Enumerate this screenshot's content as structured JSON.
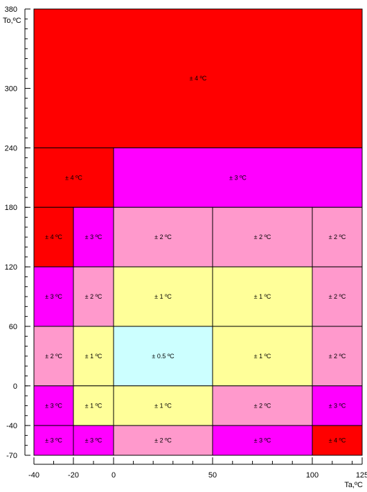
{
  "chart_data": {
    "type": "heatmap",
    "title": "",
    "xlabel": "Ta,ºC",
    "ylabel": "To,ºC",
    "xlim": [
      -40,
      125
    ],
    "ylim": [
      -70,
      380
    ],
    "x_ticks": [
      -40,
      -20,
      0,
      50,
      100,
      125
    ],
    "y_ticks": [
      -70,
      -40,
      0,
      60,
      120,
      180,
      240,
      300,
      380
    ],
    "x_minor_step": 10,
    "y_minor_step": 10,
    "grid": false,
    "colors": {
      "±4ºC": "#ff0000",
      "±3ºC": "#ff00ff",
      "±2ºC": "#ff99cc",
      "±1ºC": "#ffff99",
      "±0.5ºC": "#ccffff"
    },
    "cells": [
      {
        "x0": -40,
        "x1": 125,
        "y0": 240,
        "y1": 380,
        "label": "± 4 ºC",
        "color": "#ff0000"
      },
      {
        "x0": -40,
        "x1": 0,
        "y0": 180,
        "y1": 240,
        "label": "± 4 ºC",
        "color": "#ff0000"
      },
      {
        "x0": 0,
        "x1": 125,
        "y0": 180,
        "y1": 240,
        "label": "± 3 ºC",
        "color": "#ff00ff"
      },
      {
        "x0": -40,
        "x1": -20,
        "y0": 120,
        "y1": 180,
        "label": "± 4 ºC",
        "color": "#ff0000"
      },
      {
        "x0": -20,
        "x1": 0,
        "y0": 120,
        "y1": 180,
        "label": "± 3 ºC",
        "color": "#ff00ff"
      },
      {
        "x0": 0,
        "x1": 50,
        "y0": 120,
        "y1": 180,
        "label": "± 2 ºC",
        "color": "#ff99cc"
      },
      {
        "x0": 50,
        "x1": 100,
        "y0": 120,
        "y1": 180,
        "label": "± 2 ºC",
        "color": "#ff99cc"
      },
      {
        "x0": 100,
        "x1": 125,
        "y0": 120,
        "y1": 180,
        "label": "± 2 ºC",
        "color": "#ff99cc"
      },
      {
        "x0": -40,
        "x1": -20,
        "y0": 60,
        "y1": 120,
        "label": "± 3 ºC",
        "color": "#ff00ff"
      },
      {
        "x0": -20,
        "x1": 0,
        "y0": 60,
        "y1": 120,
        "label": "± 2 ºC",
        "color": "#ff99cc"
      },
      {
        "x0": 0,
        "x1": 50,
        "y0": 60,
        "y1": 120,
        "label": "± 1 ºC",
        "color": "#ffff99"
      },
      {
        "x0": 50,
        "x1": 100,
        "y0": 60,
        "y1": 120,
        "label": "± 1 ºC",
        "color": "#ffff99"
      },
      {
        "x0": 100,
        "x1": 125,
        "y0": 60,
        "y1": 120,
        "label": "± 2 ºC",
        "color": "#ff99cc"
      },
      {
        "x0": -40,
        "x1": -20,
        "y0": 0,
        "y1": 60,
        "label": "± 2 ºC",
        "color": "#ff99cc"
      },
      {
        "x0": -20,
        "x1": 0,
        "y0": 0,
        "y1": 60,
        "label": "± 1 ºC",
        "color": "#ffff99"
      },
      {
        "x0": 0,
        "x1": 50,
        "y0": 0,
        "y1": 60,
        "label": "± 0.5 ºC",
        "color": "#ccffff"
      },
      {
        "x0": 50,
        "x1": 100,
        "y0": 0,
        "y1": 60,
        "label": "± 1 ºC",
        "color": "#ffff99"
      },
      {
        "x0": 100,
        "x1": 125,
        "y0": 0,
        "y1": 60,
        "label": "± 2 ºC",
        "color": "#ff99cc"
      },
      {
        "x0": -40,
        "x1": -20,
        "y0": -40,
        "y1": 0,
        "label": "± 3 ºC",
        "color": "#ff00ff"
      },
      {
        "x0": -20,
        "x1": 0,
        "y0": -40,
        "y1": 0,
        "label": "± 1 ºC",
        "color": "#ffff99"
      },
      {
        "x0": 0,
        "x1": 50,
        "y0": -40,
        "y1": 0,
        "label": "± 1 ºC",
        "color": "#ffff99"
      },
      {
        "x0": 50,
        "x1": 100,
        "y0": -40,
        "y1": 0,
        "label": "± 2 ºC",
        "color": "#ff99cc"
      },
      {
        "x0": 100,
        "x1": 125,
        "y0": -40,
        "y1": 0,
        "label": "± 3 ºC",
        "color": "#ff00ff"
      },
      {
        "x0": -40,
        "x1": -20,
        "y0": -70,
        "y1": -40,
        "label": "± 3 ºC",
        "color": "#ff00ff"
      },
      {
        "x0": -20,
        "x1": 0,
        "y0": -70,
        "y1": -40,
        "label": "± 3 ºC",
        "color": "#ff00ff"
      },
      {
        "x0": 0,
        "x1": 50,
        "y0": -70,
        "y1": -40,
        "label": "± 2 ºC",
        "color": "#ff99cc"
      },
      {
        "x0": 50,
        "x1": 100,
        "y0": -70,
        "y1": -40,
        "label": "± 3 ºC",
        "color": "#ff00ff"
      },
      {
        "x0": 100,
        "x1": 125,
        "y0": -70,
        "y1": -40,
        "label": "± 4 ºC",
        "color": "#ff0000"
      }
    ]
  }
}
